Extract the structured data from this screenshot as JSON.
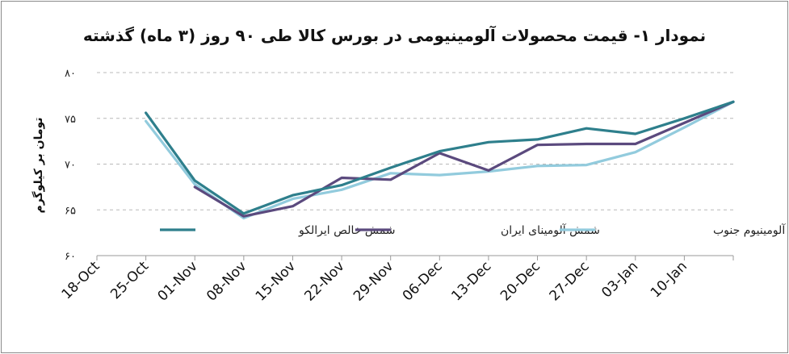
{
  "chart_data": {
    "type": "line",
    "title": "نمودار ۱- قیمت محصولات آلومینیومی در بورس کالا طی ۹۰ روز (۳ ماه) گذشته",
    "ylabel": "تومان بر کیلوگرم",
    "xlabel": "",
    "ylim": [
      60,
      80
    ],
    "yticks": [
      60,
      65,
      70,
      75,
      80
    ],
    "ytick_labels": [
      "۶۰",
      "۶۵",
      "۷۰",
      "۷۵",
      "۸۰"
    ],
    "categories": [
      "18-Oct",
      "25-Oct",
      "01-Nov",
      "08-Nov",
      "15-Nov",
      "22-Nov",
      "29-Nov",
      "06-Dec",
      "13-Dec",
      "20-Dec",
      "27-Dec",
      "03-Jan",
      "10-Jan"
    ],
    "x": [
      0,
      7,
      14,
      21,
      28,
      35,
      42,
      49,
      56,
      63,
      70,
      77,
      84,
      91
    ],
    "series": [
      {
        "name": "شمش خالص ایرالکو",
        "color": "#2e7f8c",
        "points": [
          [
            7,
            75.6
          ],
          [
            14,
            68.2
          ],
          [
            21,
            64.6
          ],
          [
            28,
            66.6
          ],
          [
            35,
            67.7
          ],
          [
            42,
            69.6
          ],
          [
            49,
            71.4
          ],
          [
            56,
            72.4
          ],
          [
            63,
            72.7
          ],
          [
            70,
            73.9
          ],
          [
            77,
            73.3
          ],
          [
            84,
            75.0
          ],
          [
            91,
            76.8
          ]
        ]
      },
      {
        "name": "شمش آلومینای ایران",
        "color": "#5b4a7e",
        "points": [
          [
            14,
            67.5
          ],
          [
            21,
            64.3
          ],
          [
            28,
            65.4
          ],
          [
            35,
            68.5
          ],
          [
            42,
            68.3
          ],
          [
            49,
            71.2
          ],
          [
            56,
            69.3
          ],
          [
            63,
            72.1
          ],
          [
            70,
            72.2
          ],
          [
            77,
            72.2
          ],
          [
            84,
            74.5
          ],
          [
            91,
            76.8
          ]
        ]
      },
      {
        "name": "شمش آلومینیوم جنوب",
        "color": "#92cbdd",
        "points": [
          [
            7,
            74.7
          ],
          [
            14,
            67.8
          ],
          [
            21,
            64.1
          ],
          [
            28,
            66.2
          ],
          [
            35,
            67.2
          ],
          [
            42,
            69.0
          ],
          [
            49,
            68.8
          ],
          [
            56,
            69.2
          ],
          [
            63,
            69.8
          ],
          [
            70,
            69.9
          ],
          [
            77,
            71.3
          ],
          [
            84,
            74.0
          ],
          [
            91,
            76.8
          ]
        ]
      }
    ],
    "legend": "inside-bottom",
    "grid": "horizontal-dashed"
  }
}
